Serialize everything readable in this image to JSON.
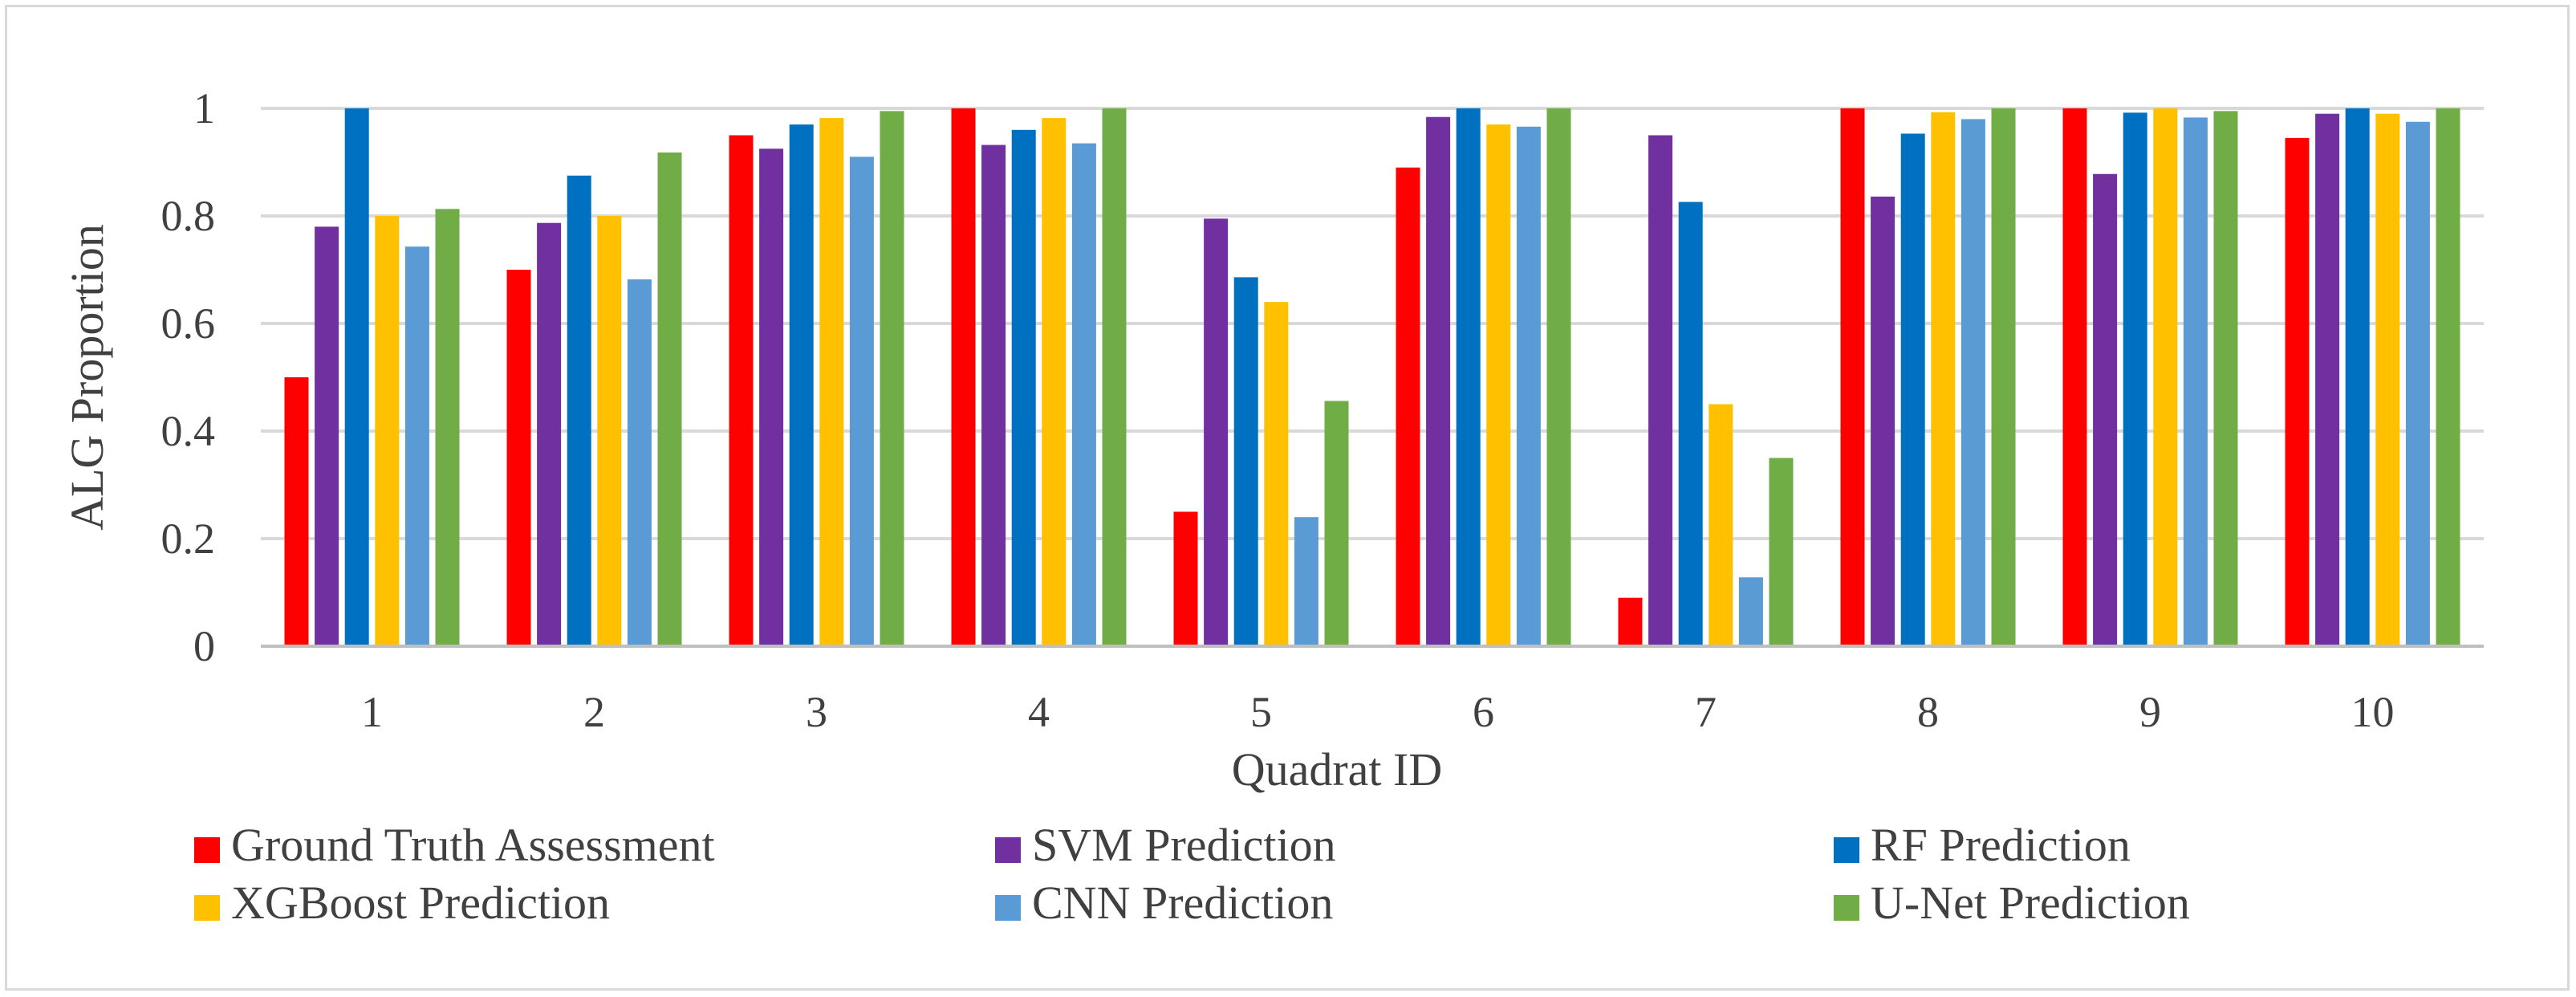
{
  "chart_data": {
    "type": "bar",
    "title": "",
    "xlabel": "Quadrat ID",
    "ylabel": "ALG Proportion",
    "ylim": [
      0,
      1
    ],
    "yticks": [
      "0",
      "0.2",
      "0.4",
      "0.6",
      "0.8",
      "1"
    ],
    "grid": true,
    "legend_position": "bottom",
    "categories": [
      "1",
      "2",
      "3",
      "4",
      "5",
      "6",
      "7",
      "8",
      "9",
      "10"
    ],
    "series": [
      {
        "name": "Ground Truth Assessment",
        "color": "#ff0000",
        "values": [
          0.5,
          0.7,
          0.95,
          1.0,
          0.25,
          0.89,
          0.09,
          1.0,
          1.0,
          0.945
        ]
      },
      {
        "name": "SVM Prediction",
        "color": "#7030a0",
        "values": [
          0.78,
          0.787,
          0.925,
          0.932,
          0.795,
          0.984,
          0.95,
          0.836,
          0.878,
          0.99
        ]
      },
      {
        "name": "RF Prediction",
        "color": "#0070c0",
        "values": [
          1.0,
          0.875,
          0.97,
          0.96,
          0.686,
          1.0,
          0.826,
          0.953,
          0.992,
          1.0
        ]
      },
      {
        "name": "XGBoost Prediction",
        "color": "#ffc000",
        "values": [
          0.8,
          0.8,
          0.982,
          0.982,
          0.64,
          0.97,
          0.45,
          0.993,
          1.0,
          0.99
        ]
      },
      {
        "name": "CNN Prediction",
        "color": "#5b9bd5",
        "values": [
          0.743,
          0.682,
          0.91,
          0.935,
          0.24,
          0.966,
          0.128,
          0.98,
          0.983,
          0.975
        ]
      },
      {
        "name": "U-Net Prediction",
        "color": "#70ad47",
        "values": [
          0.813,
          0.918,
          0.995,
          1.0,
          0.456,
          1.0,
          0.35,
          1.0,
          0.995,
          1.0
        ]
      }
    ]
  },
  "colors": {
    "grid": "#d9d9d9",
    "axis": "#bfbfbf",
    "text": "#404040",
    "frame": "#d9d9d9"
  }
}
